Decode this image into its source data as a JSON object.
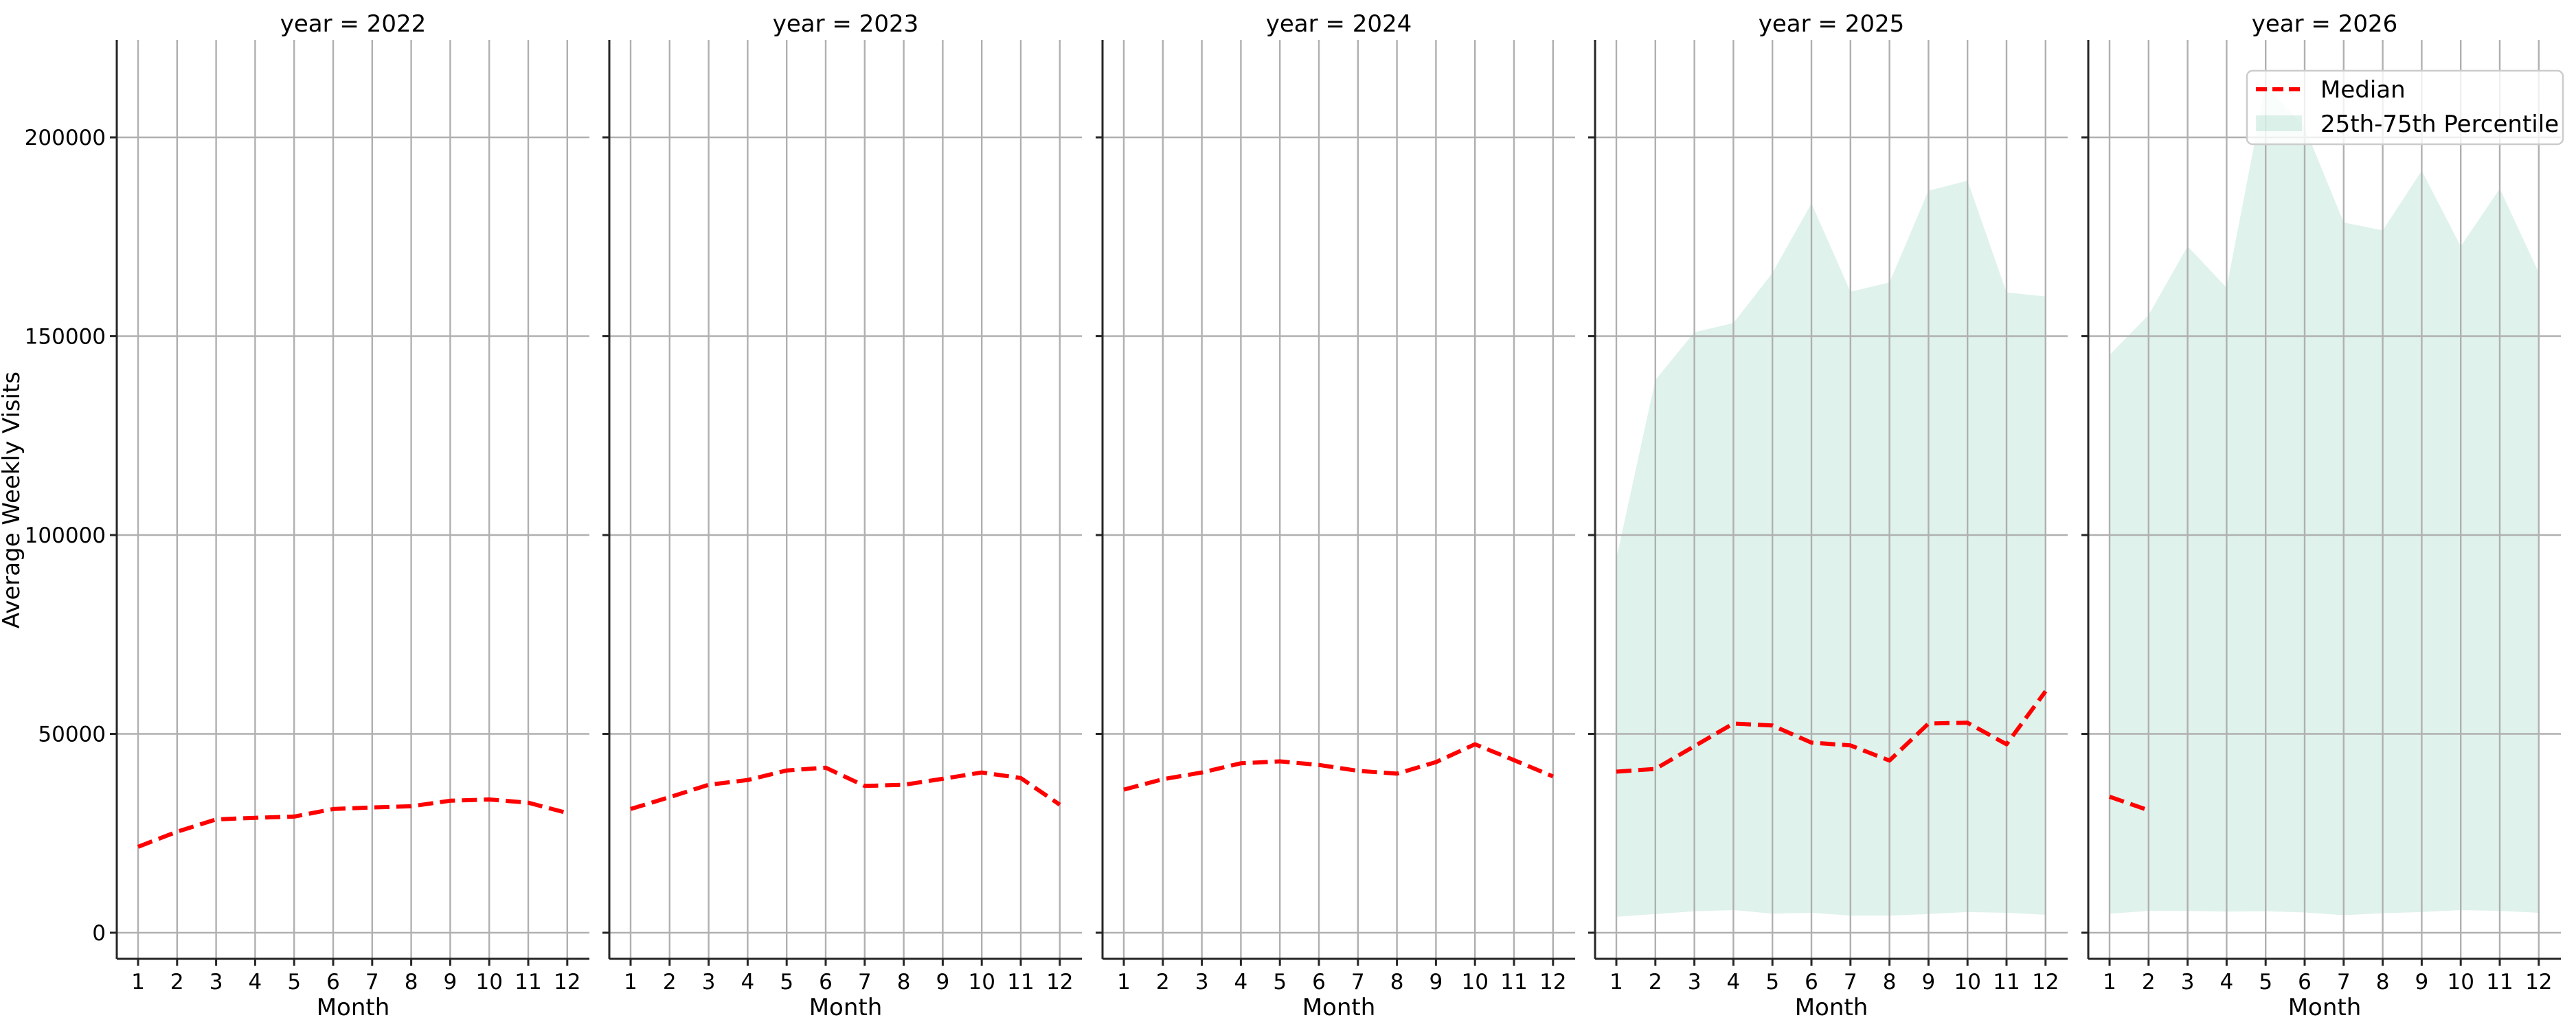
{
  "figure": {
    "ylabel": "Average Weekly Visits",
    "xlabel": "Month",
    "legend": {
      "median_label": "Median",
      "band_label": "25th-75th Percentile"
    },
    "colors": {
      "median": "#ff0000",
      "band": "#66c2a5",
      "band_opacity": 0.21,
      "grid": "#b0b0b0",
      "spine": "#262626"
    },
    "yticks": [
      0,
      50000,
      100000,
      150000,
      200000
    ],
    "ytick_labels": [
      "0",
      "50000",
      "100000",
      "150000",
      "200000"
    ],
    "xticks": [
      1,
      2,
      3,
      4,
      5,
      6,
      7,
      8,
      9,
      10,
      11,
      12
    ],
    "xtick_labels": [
      "1",
      "2",
      "3",
      "4",
      "5",
      "6",
      "7",
      "8",
      "9",
      "10",
      "11",
      "12"
    ],
    "panel_titles": [
      "year = 2022",
      "year = 2023",
      "year = 2024",
      "year = 2025",
      "year = 2026"
    ]
  },
  "chart_data": {
    "type": "line",
    "title": "",
    "facet": "year",
    "xlabel": "Month",
    "ylabel": "Average Weekly Visits",
    "ylim": [
      -6500,
      224000
    ],
    "xlim": [
      0.45,
      12.55
    ],
    "grid": true,
    "legend_position": "upper right (in last panel)",
    "legend": [
      "Median",
      "25th-75th Percentile"
    ],
    "x": [
      1,
      2,
      3,
      4,
      5,
      6,
      7,
      8,
      9,
      10,
      11,
      12
    ],
    "panels": [
      {
        "title": "year = 2022",
        "year": 2022,
        "median": [
          21600,
          25400,
          28500,
          28900,
          29200,
          31100,
          31500,
          31800,
          33200,
          33500,
          32700,
          30100
        ],
        "p25": null,
        "p75": null
      },
      {
        "title": "year = 2023",
        "year": 2023,
        "median": [
          31100,
          34100,
          37200,
          38400,
          40800,
          41500,
          36900,
          37200,
          38700,
          40300,
          38900,
          32200
        ],
        "p25": null,
        "p75": null
      },
      {
        "title": "year = 2024",
        "year": 2024,
        "median": [
          36000,
          38600,
          40300,
          42600,
          43100,
          42200,
          40700,
          40000,
          42900,
          47400,
          43400,
          39300
        ],
        "p25": null,
        "p75": null
      },
      {
        "title": "year = 2025",
        "year": 2025,
        "median": [
          40500,
          41200,
          46900,
          52600,
          52100,
          47800,
          47100,
          43300,
          52600,
          52800,
          47400,
          60700
        ],
        "p25": [
          4000,
          4700,
          5400,
          5700,
          4800,
          5000,
          4300,
          4300,
          4700,
          5200,
          5000,
          4500
        ],
        "p75": [
          94100,
          139000,
          151000,
          153300,
          165900,
          183400,
          161200,
          163500,
          186600,
          189100,
          161000,
          160000
        ]
      },
      {
        "title": "year = 2026",
        "year": 2026,
        "median": [
          34200,
          30800,
          null,
          null,
          null,
          null,
          null,
          null,
          null,
          null,
          null,
          null
        ],
        "p25": [
          4800,
          5500,
          5500,
          5300,
          5400,
          5100,
          4400,
          4900,
          5200,
          5700,
          5500,
          5000
        ],
        "p75": [
          145300,
          155300,
          172600,
          162200,
          213000,
          202600,
          178600,
          176600,
          191600,
          172600,
          187100,
          166000
        ]
      }
    ]
  }
}
